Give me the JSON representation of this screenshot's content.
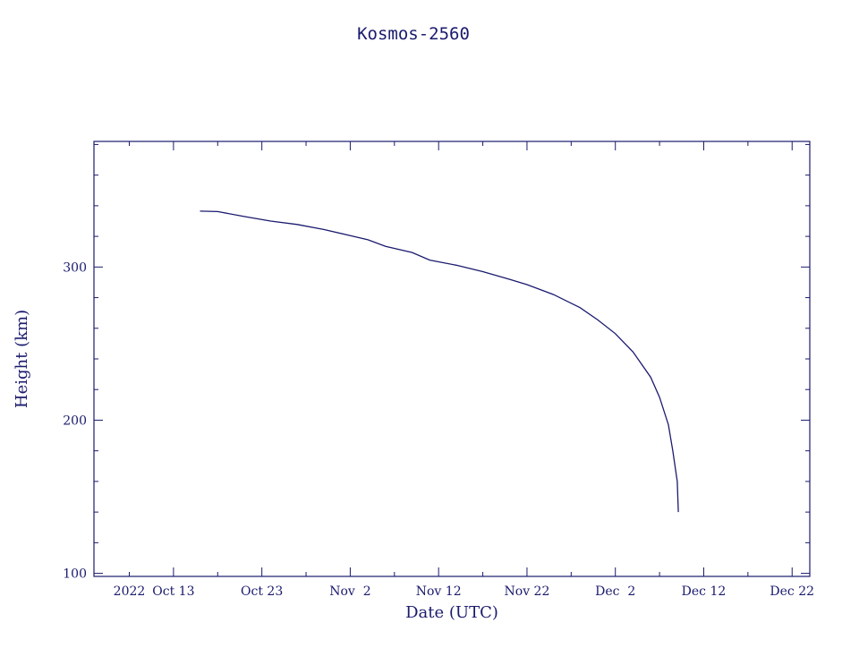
{
  "chart_data": {
    "type": "line",
    "title": "Kosmos-2560",
    "xlabel": "Date (UTC)",
    "ylabel": "Height (km)",
    "x_axis": {
      "type": "date",
      "range": [
        "2022-10-04",
        "2022-12-24"
      ],
      "ticks": [
        {
          "date": "2022-10-08",
          "label": "2022"
        },
        {
          "date": "2022-10-13",
          "label": "Oct 13"
        },
        {
          "date": "2022-10-23",
          "label": "Oct 23"
        },
        {
          "date": "2022-11-02",
          "label": "Nov  2"
        },
        {
          "date": "2022-11-12",
          "label": "Nov 12"
        },
        {
          "date": "2022-11-22",
          "label": "Nov 22"
        },
        {
          "date": "2022-12-02",
          "label": "Dec  2"
        },
        {
          "date": "2022-12-12",
          "label": "Dec 12"
        },
        {
          "date": "2022-12-22",
          "label": "Dec 22"
        }
      ]
    },
    "y_axis": {
      "range": [
        98,
        382
      ],
      "ticks": [
        {
          "value": 100,
          "label": "100"
        },
        {
          "value": 200,
          "label": "200"
        },
        {
          "value": 300,
          "label": "300"
        }
      ]
    },
    "series": [
      {
        "name": "",
        "points": [
          {
            "x": "2022-10-16",
            "y": 336.5
          },
          {
            "x": "2022-10-18",
            "y": 336.2
          },
          {
            "x": "2022-10-21",
            "y": 333.0
          },
          {
            "x": "2022-10-24",
            "y": 330.0
          },
          {
            "x": "2022-10-27",
            "y": 327.8
          },
          {
            "x": "2022-10-30",
            "y": 324.5
          },
          {
            "x": "2022-11-02",
            "y": 320.5
          },
          {
            "x": "2022-11-04",
            "y": 317.8
          },
          {
            "x": "2022-11-06",
            "y": 313.5
          },
          {
            "x": "2022-11-09",
            "y": 309.5
          },
          {
            "x": "2022-11-11",
            "y": 304.5
          },
          {
            "x": "2022-11-14",
            "y": 301.2
          },
          {
            "x": "2022-11-17",
            "y": 297.0
          },
          {
            "x": "2022-11-20",
            "y": 292.0
          },
          {
            "x": "2022-11-22",
            "y": 288.5
          },
          {
            "x": "2022-11-25",
            "y": 282.0
          },
          {
            "x": "2022-11-28",
            "y": 273.5
          },
          {
            "x": "2022-11-30",
            "y": 265.5
          },
          {
            "x": "2022-12-02",
            "y": 256.5
          },
          {
            "x": "2022-12-04",
            "y": 244.5
          },
          {
            "x": "2022-12-06",
            "y": 228.0
          },
          {
            "x": "2022-12-07",
            "y": 215.0
          },
          {
            "x": "2022-12-08",
            "y": 197.0
          },
          {
            "x": "2022-12-08 12:00",
            "y": 180.0
          },
          {
            "x": "2022-12-09",
            "y": 160.0
          },
          {
            "x": "2022-12-09 03:00",
            "y": 140.0
          }
        ]
      }
    ]
  }
}
